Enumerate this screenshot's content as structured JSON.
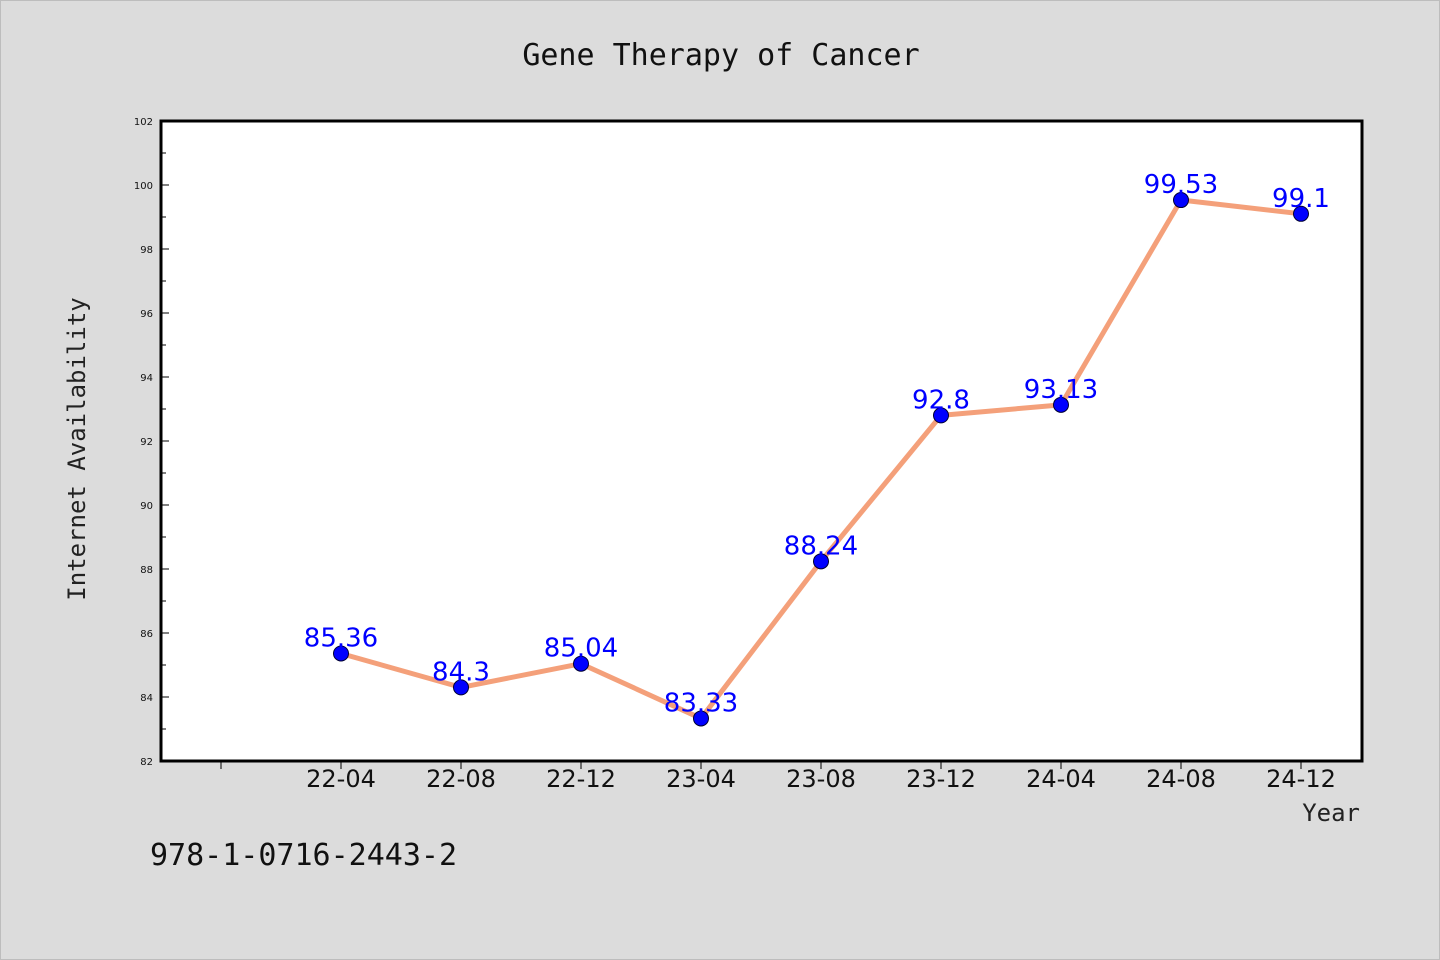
{
  "chart_data": {
    "type": "line",
    "title": "Gene Therapy of Cancer",
    "xlabel": "Year",
    "ylabel": "Internet Availability",
    "categories": [
      "22-04",
      "22-08",
      "22-12",
      "23-04",
      "23-08",
      "23-12",
      "24-04",
      "24-08",
      "24-12"
    ],
    "values": [
      85.36,
      84.3,
      85.04,
      83.33,
      88.24,
      92.8,
      93.13,
      99.53,
      99.1
    ],
    "data_labels": [
      "85.36",
      "84.3",
      "85.04",
      "83.33",
      "88.24",
      "92.8",
      "93.13",
      "99.53",
      "99.1"
    ],
    "ylim": [
      82,
      102
    ],
    "yticks": [
      82,
      84,
      86,
      88,
      90,
      92,
      94,
      96,
      98,
      100,
      102
    ],
    "grid": false,
    "line_color": "#f4a07a",
    "marker_color": "#0000ff",
    "label_color": "#0000ff"
  },
  "footer": {
    "isbn": "978-1-0716-2443-2"
  }
}
